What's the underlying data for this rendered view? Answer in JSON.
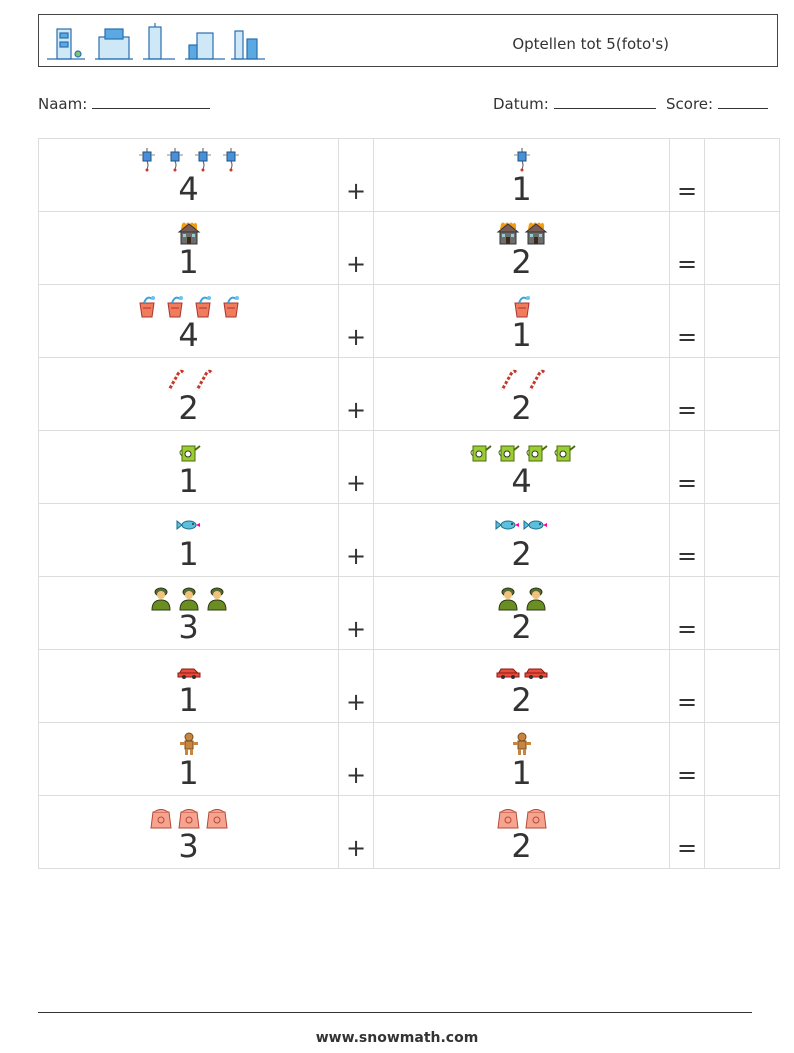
{
  "header": {
    "title": "Optellen tot 5(foto's)"
  },
  "info": {
    "name_label": "Naam:",
    "date_label": "Datum:",
    "score_label": "Score:"
  },
  "operators": {
    "plus": "+",
    "equals": "="
  },
  "rows": [
    {
      "icon": "kite",
      "left": 4,
      "right": 1
    },
    {
      "icon": "burning-house",
      "left": 1,
      "right": 2
    },
    {
      "icon": "watering-bucket",
      "left": 4,
      "right": 1
    },
    {
      "icon": "candy-cane",
      "left": 2,
      "right": 2
    },
    {
      "icon": "watering-can",
      "left": 1,
      "right": 4
    },
    {
      "icon": "fish",
      "left": 1,
      "right": 2
    },
    {
      "icon": "soldier",
      "left": 3,
      "right": 2
    },
    {
      "icon": "car",
      "left": 1,
      "right": 2
    },
    {
      "icon": "gingerbread-man",
      "left": 1,
      "right": 1
    },
    {
      "icon": "seed-bag",
      "left": 3,
      "right": 2
    }
  ],
  "footer": {
    "url": "www.snowmath.com"
  }
}
